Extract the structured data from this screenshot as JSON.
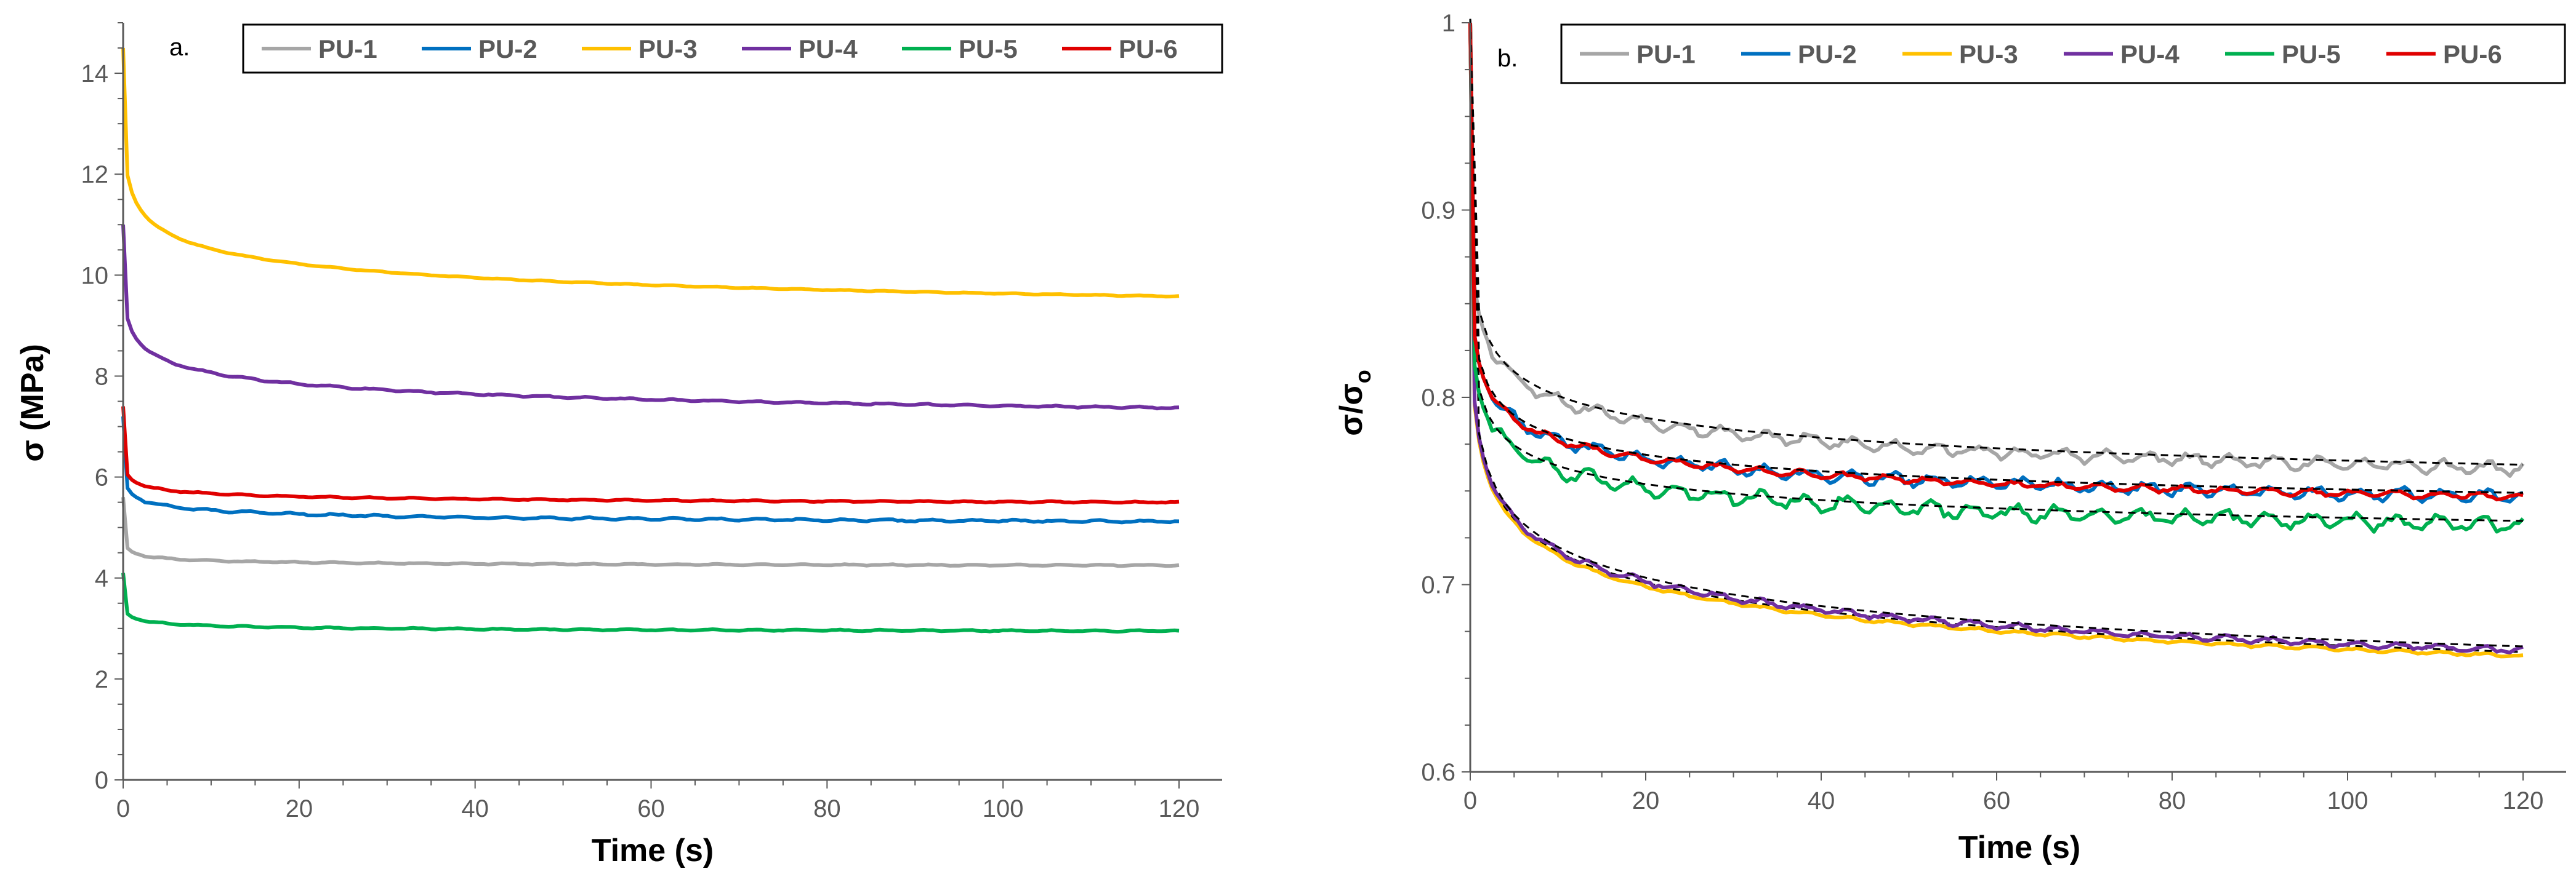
{
  "chart_data": [
    {
      "type": "line",
      "panel_label": "a.",
      "xlabel": "Time (s)",
      "ylabel": "σ (MPa)",
      "xlim": [
        0,
        120
      ],
      "ylim": [
        0,
        15
      ],
      "xticks": [
        0,
        20,
        40,
        60,
        80,
        100,
        120
      ],
      "yticks": [
        0,
        2,
        4,
        6,
        8,
        10,
        12,
        14
      ],
      "grid": false,
      "legend_position": "top",
      "series": [
        {
          "name": "PU-1",
          "color": "#A6A6A6",
          "y0": 5.6,
          "y_end": 4.25,
          "k": 3.2,
          "n": 0.38,
          "noise": 0.015
        },
        {
          "name": "PU-2",
          "color": "#0070C0",
          "y0": 7.2,
          "y_end": 5.12,
          "k": 2.0,
          "n": 0.32,
          "noise": 0.025
        },
        {
          "name": "PU-3",
          "color": "#FFC000",
          "y0": 14.5,
          "y_end": 9.58,
          "k": 0.9,
          "n": 0.33,
          "noise": 0.01
        },
        {
          "name": "PU-4",
          "color": "#7030A0",
          "y0": 11.0,
          "y_end": 7.37,
          "k": 0.9,
          "n": 0.33,
          "noise": 0.02
        },
        {
          "name": "PU-5",
          "color": "#00B050",
          "y0": 4.1,
          "y_end": 2.95,
          "k": 2.4,
          "n": 0.35,
          "noise": 0.015
        },
        {
          "name": "PU-6",
          "color": "#E00000",
          "y0": 7.4,
          "y_end": 5.5,
          "k": 2.4,
          "n": 0.33,
          "noise": 0.015
        }
      ]
    },
    {
      "type": "line",
      "panel_label": "b.",
      "xlabel": "Time (s)",
      "ylabel": "σ/σ",
      "ylabel_subscript": "o",
      "xlim": [
        0,
        120
      ],
      "ylim": [
        0.6,
        1.0
      ],
      "xticks": [
        0,
        20,
        40,
        60,
        80,
        100,
        120
      ],
      "yticks": [
        0.6,
        0.7,
        0.8,
        0.9,
        1
      ],
      "grid": false,
      "legend_position": "top",
      "fit_style": "black dashed",
      "series": [
        {
          "name": "PU-1",
          "color": "#A6A6A6",
          "y0": 1.0,
          "y_end": 0.762,
          "k": 1.2,
          "n": 0.3,
          "noise": 0.004
        },
        {
          "name": "PU-2",
          "color": "#0070C0",
          "y0": 1.0,
          "y_end": 0.747,
          "k": 1.7,
          "n": 0.3,
          "noise": 0.004
        },
        {
          "name": "PU-3",
          "color": "#FFC000",
          "y0": 1.0,
          "y_end": 0.662,
          "k": 1.1,
          "n": 0.26,
          "noise": 0.001
        },
        {
          "name": "PU-4",
          "color": "#7030A0",
          "y0": 1.0,
          "y_end": 0.665,
          "k": 1.1,
          "n": 0.26,
          "noise": 0.002
        },
        {
          "name": "PU-5",
          "color": "#00B050",
          "y0": 1.0,
          "y_end": 0.732,
          "k": 1.9,
          "n": 0.3,
          "noise": 0.005
        },
        {
          "name": "PU-6",
          "color": "#E00000",
          "y0": 1.0,
          "y_end": 0.747,
          "k": 1.7,
          "n": 0.3,
          "noise": 0.002
        }
      ]
    }
  ]
}
